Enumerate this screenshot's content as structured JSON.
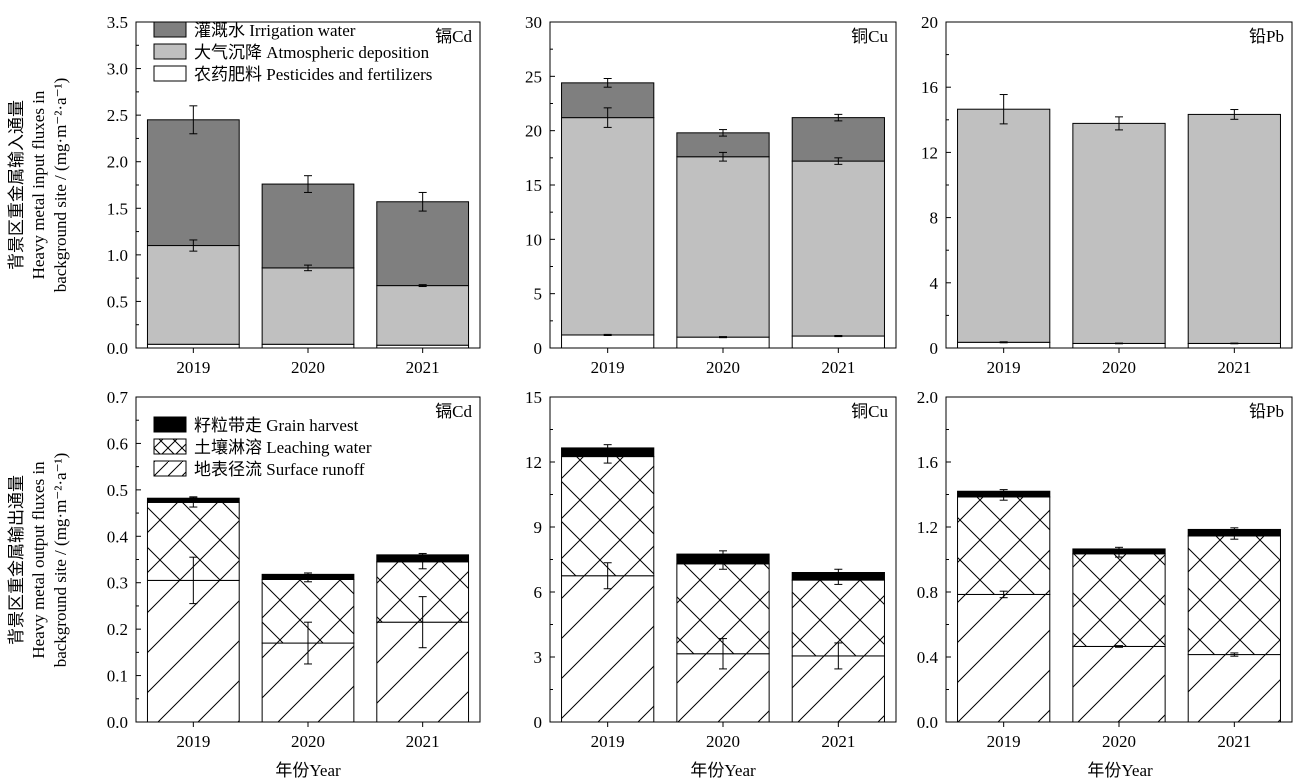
{
  "colors": {
    "irrigation": "#7f7f7f",
    "deposition": "#c0c0c0",
    "fertilizer": "#ffffff",
    "grain": "#000000"
  },
  "ylabels": {
    "input": [
      "背景区重金属输入通量",
      "Heavy metal input fluxes in",
      "background site / (mg·m⁻²·a⁻¹)"
    ],
    "output": [
      "背景区重金属输出通量",
      "Heavy metal output fluxes in",
      "background site / (mg·m⁻²·a⁻¹)"
    ]
  },
  "xlabel": "年份Year",
  "legend_input": [
    {
      "key": "irrigation",
      "label": "灌溉水 Irrigation water"
    },
    {
      "key": "deposition",
      "label": "大气沉降 Atmospheric deposition"
    },
    {
      "key": "fertilizer",
      "label": "农药肥料 Pesticides and fertilizers"
    }
  ],
  "legend_output": [
    {
      "key": "grain",
      "label": "籽粒带走 Grain harvest"
    },
    {
      "key": "leaching",
      "label": "土壤淋溶 Leaching water"
    },
    {
      "key": "runoff",
      "label": "地表径流 Surface runoff"
    }
  ],
  "chart_data": [
    {
      "type": "bar",
      "stacked": true,
      "panel": "input-cd",
      "label": "镉Cd",
      "categories": [
        "2019",
        "2020",
        "2021"
      ],
      "ylim": [
        0,
        3.5
      ],
      "yticks": [
        "0.0",
        "0.5",
        "1.0",
        "1.5",
        "2.0",
        "2.5",
        "3.0",
        "3.5"
      ],
      "series": [
        {
          "name": "农药肥料 Pesticides and fertilizers",
          "key": "fertilizer",
          "values": [
            0.04,
            0.04,
            0.03
          ],
          "errors": [
            0.0,
            0.0,
            0.0
          ]
        },
        {
          "name": "大气沉降 Atmospheric deposition",
          "key": "deposition",
          "values": [
            1.06,
            0.82,
            0.64
          ],
          "errors": [
            0.06,
            0.03,
            0.01
          ]
        },
        {
          "name": "灌溉水 Irrigation water",
          "key": "irrigation",
          "values": [
            1.35,
            0.9,
            0.9
          ],
          "errors": [
            0.15,
            0.09,
            0.1
          ]
        }
      ]
    },
    {
      "type": "bar",
      "stacked": true,
      "panel": "input-cu",
      "label": "铜Cu",
      "categories": [
        "2019",
        "2020",
        "2021"
      ],
      "ylim": [
        0,
        30
      ],
      "yticks": [
        "0",
        "5",
        "10",
        "15",
        "20",
        "25",
        "30"
      ],
      "series": [
        {
          "name": "农药肥料 Pesticides and fertilizers",
          "key": "fertilizer",
          "values": [
            1.2,
            1.0,
            1.1
          ],
          "errors": [
            0.05,
            0.05,
            0.05
          ]
        },
        {
          "name": "大气沉降 Atmospheric deposition",
          "key": "deposition",
          "values": [
            20.0,
            16.6,
            16.1
          ],
          "errors": [
            0.9,
            0.4,
            0.3
          ]
        },
        {
          "name": "灌溉水 Irrigation water",
          "key": "irrigation",
          "values": [
            3.2,
            2.2,
            4.0
          ],
          "errors": [
            0.4,
            0.3,
            0.3
          ]
        }
      ]
    },
    {
      "type": "bar",
      "stacked": true,
      "panel": "input-pb",
      "label": "铅Pb",
      "categories": [
        "2019",
        "2020",
        "2021"
      ],
      "ylim": [
        0,
        20
      ],
      "yticks": [
        "0",
        "4",
        "8",
        "12",
        "16",
        "20"
      ],
      "series": [
        {
          "name": "农药肥料 Pesticides and fertilizers",
          "key": "fertilizer",
          "values": [
            0.35,
            0.28,
            0.28
          ],
          "errors": [
            0.03,
            0.02,
            0.02
          ]
        },
        {
          "name": "大气沉降 Atmospheric deposition",
          "key": "deposition",
          "values": [
            14.3,
            13.5,
            14.05
          ],
          "errors": [
            0.9,
            0.4,
            0.3
          ]
        },
        {
          "name": "灌溉水 Irrigation water",
          "key": "irrigation",
          "values": [
            0,
            0,
            0
          ],
          "errors": [
            0,
            0,
            0
          ]
        }
      ]
    },
    {
      "type": "bar",
      "stacked": true,
      "panel": "output-cd",
      "label": "镉Cd",
      "categories": [
        "2019",
        "2020",
        "2021"
      ],
      "ylim": [
        0,
        0.7
      ],
      "yticks": [
        "0.0",
        "0.1",
        "0.2",
        "0.3",
        "0.4",
        "0.5",
        "0.6",
        "0.7"
      ],
      "series": [
        {
          "name": "地表径流 Surface runoff",
          "key": "runoff",
          "values": [
            0.305,
            0.17,
            0.215
          ],
          "errors": [
            0.05,
            0.045,
            0.055
          ]
        },
        {
          "name": "土壤淋溶 Leaching water",
          "key": "leaching",
          "values": [
            0.168,
            0.137,
            0.13
          ],
          "errors": [
            0.01,
            0.005,
            0.015
          ]
        },
        {
          "name": "籽粒带走 Grain harvest",
          "key": "grain",
          "values": [
            0.009,
            0.011,
            0.015
          ],
          "errors": [
            0.003,
            0.003,
            0.003
          ]
        }
      ]
    },
    {
      "type": "bar",
      "stacked": true,
      "panel": "output-cu",
      "label": "铜Cu",
      "categories": [
        "2019",
        "2020",
        "2021"
      ],
      "ylim": [
        0,
        15
      ],
      "yticks": [
        "0",
        "3",
        "6",
        "9",
        "12",
        "15"
      ],
      "series": [
        {
          "name": "地表径流 Surface runoff",
          "key": "runoff",
          "values": [
            6.75,
            3.15,
            3.05
          ],
          "errors": [
            0.6,
            0.7,
            0.6
          ]
        },
        {
          "name": "土壤淋溶 Leaching water",
          "key": "leaching",
          "values": [
            5.5,
            4.15,
            3.5
          ],
          "errors": [
            0.3,
            0.25,
            0.2
          ]
        },
        {
          "name": "籽粒带走 Grain harvest",
          "key": "grain",
          "values": [
            0.4,
            0.45,
            0.35
          ],
          "errors": [
            0.15,
            0.15,
            0.15
          ]
        }
      ]
    },
    {
      "type": "bar",
      "stacked": true,
      "panel": "output-pb",
      "label": "铅Pb",
      "categories": [
        "2019",
        "2020",
        "2021"
      ],
      "ylim": [
        0,
        2.0
      ],
      "yticks": [
        "0.0",
        "0.4",
        "0.8",
        "1.2",
        "1.6",
        "2.0"
      ],
      "series": [
        {
          "name": "地表径流 Surface runoff",
          "key": "runoff",
          "values": [
            0.785,
            0.465,
            0.415
          ],
          "errors": [
            0.02,
            0.005,
            0.01
          ]
        },
        {
          "name": "土壤淋溶 Leaching water",
          "key": "leaching",
          "values": [
            0.6,
            0.57,
            0.73
          ],
          "errors": [
            0.02,
            0.02,
            0.02
          ]
        },
        {
          "name": "籽粒带走 Grain harvest",
          "key": "grain",
          "values": [
            0.035,
            0.03,
            0.04
          ],
          "errors": [
            0.01,
            0.01,
            0.01
          ]
        }
      ]
    }
  ]
}
